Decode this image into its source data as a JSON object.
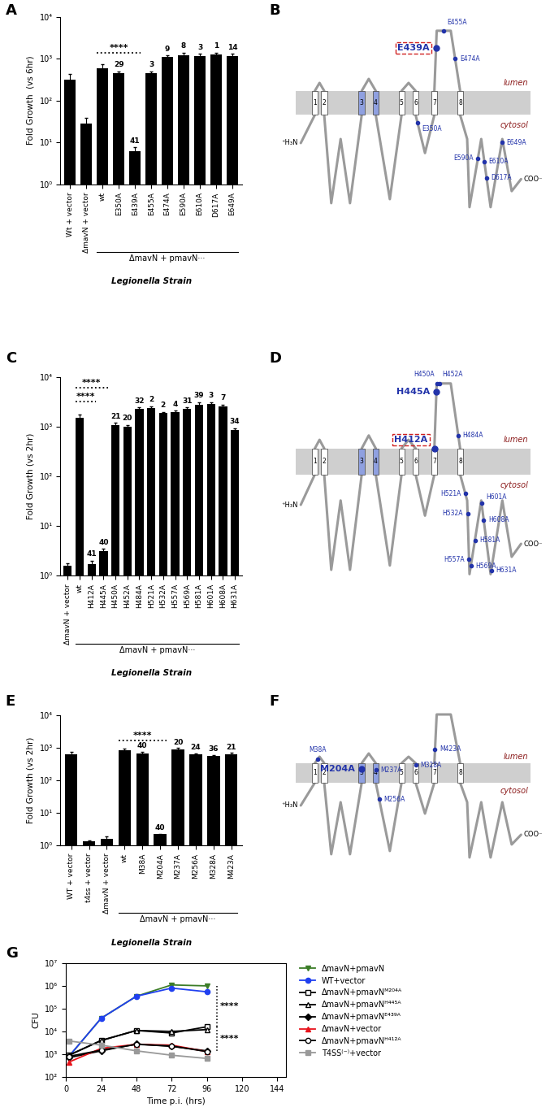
{
  "chart_data": [
    {
      "panel_label": "A",
      "type": "bar",
      "y_label": "Fold Growth  (vs 6hr)",
      "x_label": "Legionella Strain",
      "categories": [
        "Wt + vector",
        "ΔmavN + vector",
        "wt",
        "E350A",
        "E439A",
        "E455A",
        "E474A",
        "E590A",
        "E610A",
        "D617A",
        "E649A"
      ],
      "values": [
        320,
        28,
        600,
        450,
        6,
        450,
        1100,
        1200,
        1150,
        1250,
        1150
      ],
      "errors": [
        100,
        10,
        150,
        50,
        1.5,
        50,
        100,
        200,
        150,
        150,
        150
      ],
      "n": [
        null,
        null,
        null,
        29,
        41,
        3,
        9,
        8,
        3,
        1,
        14
      ],
      "color": "#000000",
      "log": "y",
      "ylim": [
        1,
        10000
      ],
      "yticks": [
        {
          "value": 1,
          "label": "10⁰"
        },
        {
          "value": 10,
          "label": "10¹"
        },
        {
          "value": 100,
          "label": "10²"
        },
        {
          "value": 1000,
          "label": "10³"
        },
        {
          "value": 10000,
          "label": "10⁴"
        }
      ],
      "significance": [
        {
          "from": "wt",
          "to": "E439A",
          "label": "****"
        }
      ],
      "group": {
        "label": "ΔmavN + pmavN···",
        "from": "wt",
        "to": "E649A"
      }
    },
    {
      "panel_label": "C",
      "type": "bar",
      "y_label": "Fold Growth (vs 2hr)",
      "x_label": "Legionella Strain",
      "categories": [
        "ΔmavN + vector",
        "wt",
        "H412A",
        "H445A",
        "H450A",
        "H452A",
        "H484A",
        "H521A",
        "H532A",
        "H557A",
        "H569A",
        "H581A",
        "H601A",
        "H608A",
        "H631A"
      ],
      "values": [
        1.6,
        1500,
        1.7,
        3.1,
        1100,
        1000,
        2300,
        2400,
        1900,
        2000,
        2300,
        2800,
        2900,
        2600,
        850
      ],
      "errors": [
        0.2,
        300,
        0.3,
        0.4,
        100,
        100,
        150,
        200,
        100,
        100,
        150,
        300,
        200,
        200,
        80
      ],
      "n": [
        null,
        null,
        41,
        40,
        21,
        20,
        32,
        2,
        2,
        4,
        31,
        39,
        3,
        7,
        34
      ],
      "color": "#000000",
      "log": "y",
      "ylim": [
        1,
        10000
      ],
      "yticks": [
        {
          "value": 1,
          "label": "10⁰"
        },
        {
          "value": 10,
          "label": "10¹"
        },
        {
          "value": 100,
          "label": "10²"
        },
        {
          "value": 1000,
          "label": "10³"
        },
        {
          "value": 10000,
          "label": "10⁴"
        }
      ],
      "significance": [
        {
          "from": "wt",
          "to": "H412A",
          "label": "****"
        },
        {
          "from": "wt",
          "to": "H445A",
          "label": "****"
        }
      ],
      "group": {
        "label": "ΔmavN + pmavN···",
        "from": "wt",
        "to": "H631A"
      }
    },
    {
      "panel_label": "E",
      "type": "bar",
      "y_label": "Fold Growth (vs 2hr)",
      "x_label": "Legionella Strain",
      "categories": [
        "WT + vector",
        "t4ss + vector",
        "ΔmavN + vector",
        "wt",
        "M38A",
        "M204A",
        "M237A",
        "M256A",
        "M328A",
        "M423A"
      ],
      "values": [
        650,
        1.3,
        1.55,
        850,
        680,
        2.2,
        900,
        620,
        560,
        650
      ],
      "errors": [
        100,
        0.1,
        0.3,
        100,
        80,
        0.1,
        100,
        60,
        50,
        50
      ],
      "n": [
        null,
        null,
        null,
        null,
        40,
        40,
        20,
        24,
        36,
        21
      ],
      "color": "#000000",
      "log": "y",
      "ylim": [
        1,
        10000
      ],
      "yticks": [
        {
          "value": 1,
          "label": "10⁰"
        },
        {
          "value": 10,
          "label": "10¹"
        },
        {
          "value": 100,
          "label": "10²"
        },
        {
          "value": 1000,
          "label": "10³"
        },
        {
          "value": 10000,
          "label": "10⁴"
        }
      ],
      "significance": [
        {
          "from": "wt",
          "to": "M204A",
          "label": "****"
        }
      ],
      "group": {
        "label": "ΔmavN + pmavN···",
        "from": "wt",
        "to": "M423A"
      }
    },
    {
      "panel_label": "G",
      "type": "line",
      "x_label": "Time p.i. (hrs)",
      "y_label": "CFU",
      "x": [
        2,
        24,
        48,
        72,
        96
      ],
      "series": [
        {
          "name": "ΔmavN+pmavN",
          "color": "#3c7d28",
          "marker": "triangle_down",
          "values": [
            800,
            38000,
            350000,
            1100000,
            1000000
          ]
        },
        {
          "name": "WT+vector",
          "color": "#2040f0",
          "marker": "circle",
          "values": [
            800,
            38000,
            350000,
            800000,
            550000
          ]
        },
        {
          "name": "ΔmavN+pmavNᴹ²⁰⁴ᴬ",
          "color": "#000000",
          "marker": "square_open",
          "values": [
            900,
            4000,
            11000,
            8500,
            16000
          ]
        },
        {
          "name": "ΔmavN+pmavNᴴ⁴⁴⁵ᴬ",
          "color": "#000000",
          "marker": "triangle_up_open",
          "values": [
            900,
            4000,
            11000,
            10000,
            12000
          ]
        },
        {
          "name": "ΔmavN+pmavNᴱ⁴³⁹ᴬ",
          "color": "#000000",
          "marker": "diamond",
          "values": [
            700,
            1400,
            2800,
            2200,
            1400
          ]
        },
        {
          "name": "ΔmavN+vector",
          "color": "#e8141c",
          "marker": "triangle_up",
          "values": [
            450,
            1800,
            2700,
            2500,
            1300
          ]
        },
        {
          "name": "ΔmavN+pmavNᴴ⁴¹²ᴬ",
          "color": "#000000",
          "marker": "circle_open",
          "values": [
            800,
            1500,
            2700,
            2300,
            1300
          ]
        },
        {
          "name": "T4SS⁽⁻⁾+vector",
          "color": "#999999",
          "marker": "square",
          "values": [
            3800,
            2500,
            1400,
            900,
            650
          ]
        }
      ],
      "log": "y",
      "xlim": [
        0,
        150
      ],
      "xticks": [
        0,
        24,
        48,
        72,
        96,
        120,
        144
      ],
      "ylim": [
        100,
        10000000
      ],
      "yticks": [
        {
          "value": 100,
          "label": "10²"
        },
        {
          "value": 1000,
          "label": "10³"
        },
        {
          "value": 10000,
          "label": "10⁴"
        },
        {
          "value": 100000,
          "label": "10⁵"
        },
        {
          "value": 1000000,
          "label": "10⁶"
        },
        {
          "value": 10000000,
          "label": "10⁷"
        }
      ],
      "legend": "upper left",
      "significance": [
        {
          "from": "ΔmavN+pmavN",
          "to": "ΔmavN+pmavNᴹ²⁰⁴ᴬ",
          "label": "****"
        },
        {
          "from": "ΔmavN+pmavNᴹ²⁰⁴ᴬ",
          "to": "ΔmavN+pmavNᴱ⁴³⁹ᴬ",
          "label": "****"
        }
      ]
    }
  ],
  "diagrams": [
    {
      "panel_label": "B",
      "lumen": "lumen",
      "cytosol": "cytosol",
      "n_terminus": "⁺H₃N",
      "c_terminus": "COO⁻",
      "helices": [
        "1",
        "2",
        "3",
        "4",
        "5",
        "6",
        "7",
        "8"
      ],
      "shaded_helices": [
        "3",
        "4"
      ],
      "residues": [
        "E350A",
        "E439A",
        "E455A",
        "E474A",
        "E590A",
        "E610A",
        "D617A",
        "E649A"
      ],
      "highlighted": [
        "E439A"
      ],
      "boxed": [
        "E439A"
      ]
    },
    {
      "panel_label": "D",
      "lumen": "lumen",
      "cytosol": "cytosol",
      "n_terminus": "⁺H₃N",
      "c_terminus": "COO⁻",
      "helices": [
        "1",
        "2",
        "3",
        "4",
        "5",
        "6",
        "7",
        "8"
      ],
      "shaded_helices": [
        "3",
        "4"
      ],
      "residues": [
        "H412A",
        "H445A",
        "H450A",
        "H452A",
        "H484A",
        "H521A",
        "H532A",
        "H557A",
        "H569A",
        "H581A",
        "H601A",
        "H608A",
        "H631A"
      ],
      "highlighted": [
        "H412A",
        "H445A"
      ],
      "boxed": [
        "H412A"
      ]
    },
    {
      "panel_label": "F",
      "lumen": "lumen",
      "cytosol": "cytosol",
      "n_terminus": "⁺H₃N",
      "c_terminus": "COO⁻",
      "helices": [
        "1",
        "2",
        "3",
        "4",
        "5",
        "6",
        "7",
        "8"
      ],
      "shaded_helices": [
        "3",
        "4"
      ],
      "residues": [
        "M38A",
        "M204A",
        "M237A",
        "M256A",
        "M328A",
        "M423A"
      ],
      "highlighted": [
        "M204A"
      ],
      "boxed": []
    }
  ]
}
